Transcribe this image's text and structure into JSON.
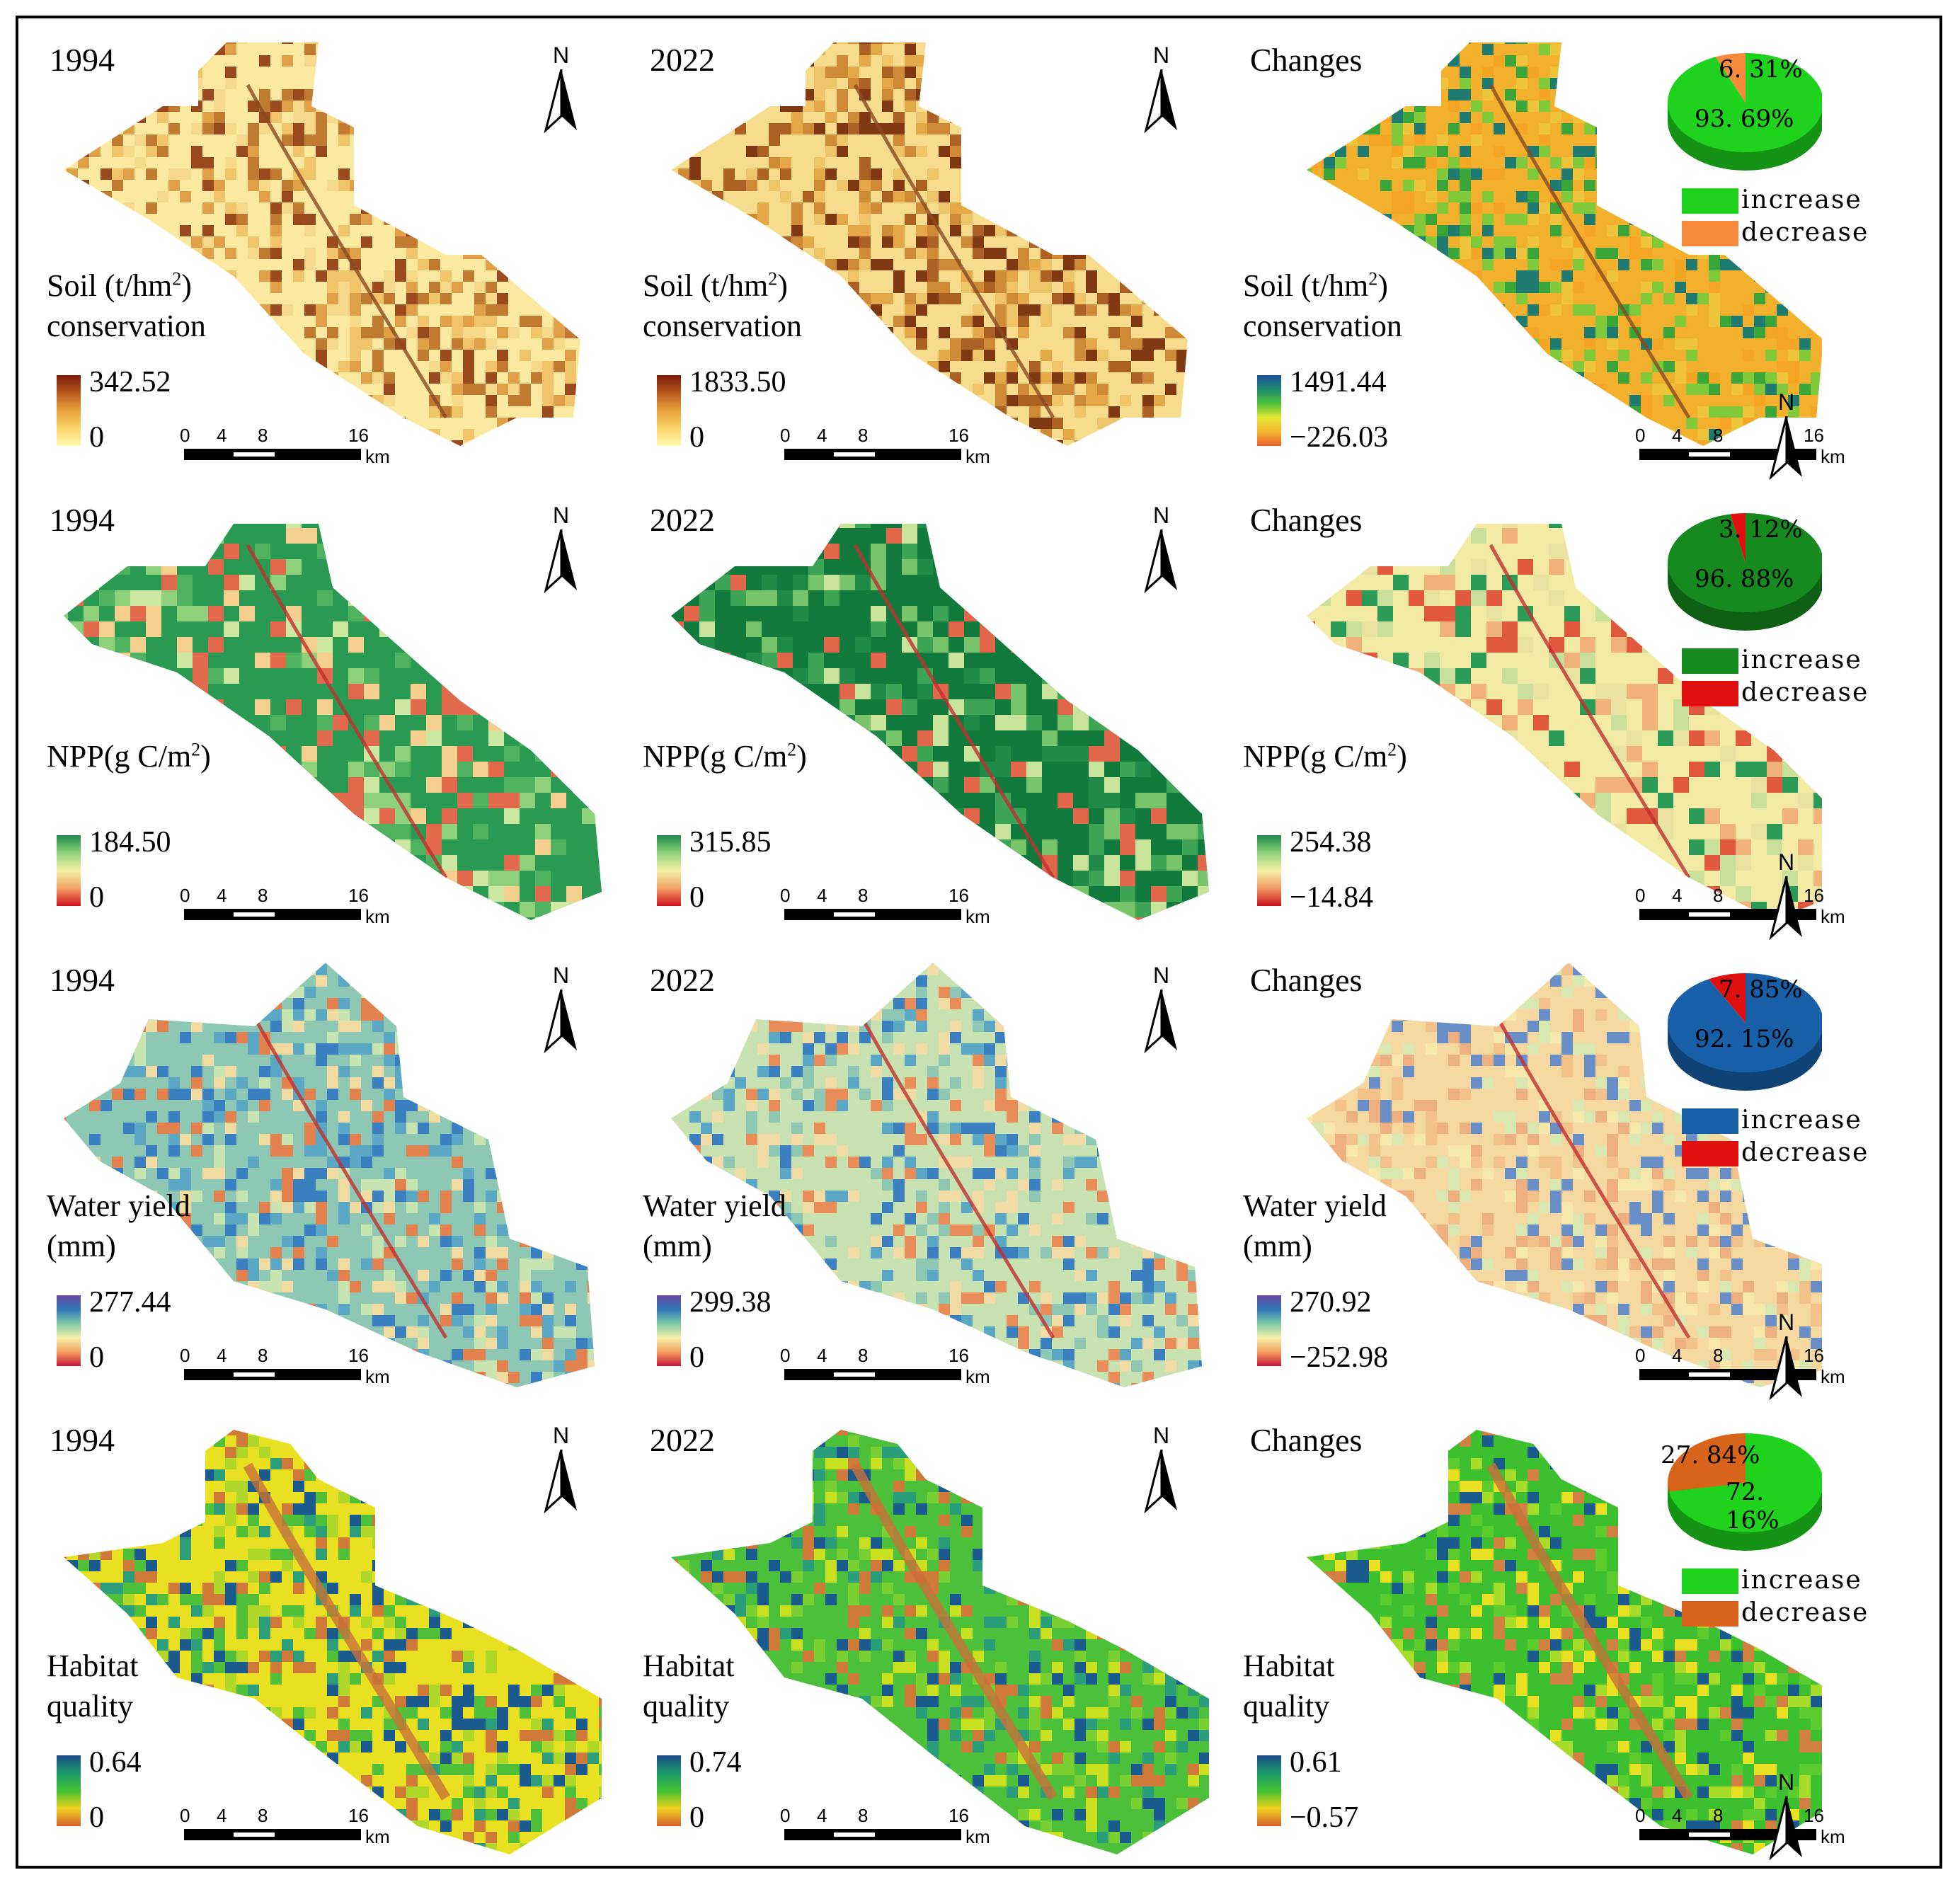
{
  "rows": [
    {
      "key": "soil",
      "panels": [
        {
          "label": "1994",
          "service": [
            "Soil  (t/hm",
            "2",
            ")"
          ],
          "service_line2": "conservation",
          "max": "342.52",
          "min": "0",
          "ramp": [
            "#fff9b0",
            "#fbd36a",
            "#e9a33a",
            "#b8561c",
            "#7a1c08"
          ],
          "map_palette": [
            "#fbe9a0",
            "#f6d98a",
            "#f1c46a",
            "#e0a048",
            "#c17a32",
            "#9a4a1e"
          ]
        },
        {
          "label": "2022",
          "service": [
            "Soil  (t/hm",
            "2",
            ")"
          ],
          "service_line2": "conservation",
          "max": "1833.50",
          "min": "0",
          "ramp": [
            "#fff9b0",
            "#fbd36a",
            "#e9a33a",
            "#b8561c",
            "#7a1c08"
          ],
          "map_palette": [
            "#f8dc8e",
            "#f0c468",
            "#e5a849",
            "#d08a36",
            "#ad6024",
            "#7f3812"
          ]
        },
        {
          "label": "Changes",
          "service": [
            "Soil  (t/hm",
            "2",
            ")"
          ],
          "service_line2": "conservation",
          "max": "1491.44",
          "min": "−226.03",
          "ramp": [
            "#e8602a",
            "#f4b62e",
            "#e6e632",
            "#4cc23a",
            "#1f8a6e",
            "#1c4f9a"
          ],
          "map_palette": [
            "#f2b02c",
            "#f5a624",
            "#eec43a",
            "#7fc93a",
            "#3aa63a",
            "#1f7a70"
          ],
          "pie": {
            "values": [
              93.69,
              6.31
            ],
            "labels": [
              "93. 69%",
              "6. 31%"
            ],
            "colors": [
              "#1ed21e",
              "#f58a3c"
            ],
            "legend": [
              "increase",
              "decrease"
            ]
          }
        }
      ]
    },
    {
      "key": "npp",
      "panels": [
        {
          "label": "1994",
          "service": [
            "NPP(g C/m",
            "2",
            ")"
          ],
          "service_line2": "",
          "max": "184.50",
          "min": "0",
          "ramp": [
            "#d0101e",
            "#f4a264",
            "#f6f0a6",
            "#8ed27a",
            "#1d8a4a"
          ],
          "map_palette": [
            "#2a9a52",
            "#4fb25e",
            "#8fd07a",
            "#cde8a0",
            "#f4cf8e",
            "#e26a4c"
          ]
        },
        {
          "label": "2022",
          "service": [
            "NPP(g C/m",
            "2",
            ")"
          ],
          "service_line2": "",
          "max": "315.85",
          "min": "0",
          "ramp": [
            "#d0101e",
            "#f4a264",
            "#f6f0a6",
            "#8ed27a",
            "#1d8a4a"
          ],
          "map_palette": [
            "#137a3e",
            "#208a48",
            "#3ea456",
            "#78c46a",
            "#c7e49a",
            "#e2664a"
          ]
        },
        {
          "label": "Changes",
          "service": [
            "NPP(g C/m",
            "2",
            ")"
          ],
          "service_line2": "",
          "max": "254.38",
          "min": "−14.84",
          "ramp": [
            "#c8101e",
            "#f09a64",
            "#f6f0a6",
            "#8ed27a",
            "#1d8a4a"
          ],
          "map_palette": [
            "#f3eaa6",
            "#e9e2a0",
            "#c8e09a",
            "#f0b27a",
            "#e0583e",
            "#2a9a56"
          ],
          "pie": {
            "values": [
              96.88,
              3.12
            ],
            "labels": [
              "96. 88%",
              "3. 12%"
            ],
            "colors": [
              "#168a1e",
              "#e01010"
            ],
            "legend": [
              "increase",
              "decrease"
            ]
          }
        }
      ]
    },
    {
      "key": "water",
      "panels": [
        {
          "label": "1994",
          "service": [
            "Water yield"
          ],
          "service_line2": "(mm)",
          "max": "277.44",
          "min": "0",
          "ramp": [
            "#c8143c",
            "#f4a060",
            "#f6f0aa",
            "#7fcaa8",
            "#2e78b8",
            "#6a48a0"
          ],
          "map_palette": [
            "#8ec8b4",
            "#5aa8c4",
            "#3a80c0",
            "#c8e4b0",
            "#f0dca0",
            "#e2804e"
          ]
        },
        {
          "label": "2022",
          "service": [
            "Water yield"
          ],
          "service_line2": "(mm)",
          "max": "299.38",
          "min": "0",
          "ramp": [
            "#c8143c",
            "#f4a060",
            "#f6f0aa",
            "#7fcaa8",
            "#2e78b8",
            "#6a48a0"
          ],
          "map_palette": [
            "#c8e2b2",
            "#f2dca6",
            "#8ec8b4",
            "#5aa8c4",
            "#e88c58",
            "#3a80c0"
          ]
        },
        {
          "label": "Changes",
          "service": [
            "Water yield"
          ],
          "service_line2": "(mm)",
          "max": "270.92",
          "min": "−252.98",
          "ramp": [
            "#c8143c",
            "#f4a060",
            "#f6f0aa",
            "#7fcaa8",
            "#2e78b8",
            "#6a48a0"
          ],
          "map_palette": [
            "#f6d9a0",
            "#f2c28a",
            "#eeb080",
            "#f6e8aa",
            "#d8e8b0",
            "#6a8ec8"
          ],
          "pie": {
            "values": [
              92.15,
              7.85
            ],
            "labels": [
              "92. 15%",
              "7. 85%"
            ],
            "colors": [
              "#1760a8",
              "#e01010"
            ],
            "legend": [
              "increase",
              "decrease"
            ]
          }
        }
      ]
    },
    {
      "key": "habitat",
      "panels": [
        {
          "label": "1994",
          "service": [
            "Habitat"
          ],
          "service_line2": "quality",
          "max": "0.64",
          "min": "0",
          "ramp": [
            "#d8602a",
            "#f0d020",
            "#40c030",
            "#1a9a6a",
            "#1a4a8a"
          ],
          "map_palette": [
            "#e8e020",
            "#b0d82a",
            "#50c03a",
            "#2c9e7a",
            "#d07a3a",
            "#1a5a8c"
          ]
        },
        {
          "label": "2022",
          "service": [
            "Habitat"
          ],
          "service_line2": "quality",
          "max": "0.74",
          "min": "0",
          "ramp": [
            "#d8602a",
            "#f0d020",
            "#40c030",
            "#1a9a6a",
            "#1a4a8a"
          ],
          "map_palette": [
            "#4cc03a",
            "#7ad030",
            "#c8e020",
            "#2a9e7a",
            "#d07a3a",
            "#1a5a8c"
          ]
        },
        {
          "label": "Changes",
          "service": [
            "Habitat"
          ],
          "service_line2": "quality",
          "max": "0.61",
          "min": "−0.57",
          "ramp": [
            "#d8602a",
            "#f0d020",
            "#40c030",
            "#1a9a6a",
            "#1a4a8a"
          ],
          "map_palette": [
            "#3cc030",
            "#5ccc2e",
            "#a8dc2a",
            "#e8e020",
            "#d08040",
            "#1a5a8c"
          ],
          "pie": {
            "values": [
              72.16,
              27.84
            ],
            "labels": [
              "72. 16%",
              "27. 84%"
            ],
            "colors": [
              "#1ed21e",
              "#d8641c"
            ],
            "legend": [
              "increase",
              "decrease"
            ]
          }
        }
      ]
    }
  ],
  "scale_bar": {
    "ticks": [
      "0",
      "4",
      "8",
      "16"
    ],
    "unit": "km"
  },
  "north_label": "N"
}
